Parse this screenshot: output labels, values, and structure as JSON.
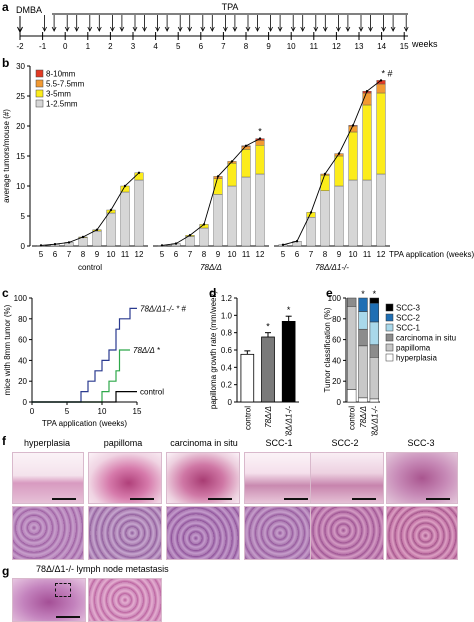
{
  "panel_letters": {
    "a": "a",
    "b": "b",
    "c": "c",
    "d": "d",
    "e": "e",
    "f": "f",
    "g": "g"
  },
  "timeline": {
    "dmba_label": "DMBA",
    "tpa_label": "TPA",
    "ticks": [
      "-2",
      "-1",
      "0",
      "1",
      "2",
      "3",
      "4",
      "5",
      "6",
      "7",
      "8",
      "9",
      "10",
      "11",
      "12",
      "13",
      "14",
      "15"
    ],
    "unit_label": "weeks"
  },
  "chart_data": [
    {
      "id": "b",
      "type": "bar",
      "stacked": true,
      "ylabel": "average tumors/mouse (#)",
      "xlabel": "TPA application (weeks)",
      "ylim": [
        0,
        30
      ],
      "yticks": [
        "0",
        "5",
        "10",
        "15",
        "20",
        "25",
        "30"
      ],
      "legend": [
        "8-10mm",
        "5.5-7.5mm",
        "3-5mm",
        "1-2.5mm"
      ],
      "legend_position": "top-left",
      "colors": {
        "8-10mm": "#e23a24",
        "5.5-7.5mm": "#f29a33",
        "3-5mm": "#fcec1b",
        "1-2.5mm": "#d6d6d6"
      },
      "groups": [
        {
          "name": "control",
          "categories": [
            "5",
            "6",
            "7",
            "8",
            "9",
            "10",
            "11",
            "12"
          ],
          "series": [
            {
              "name": "1-2.5mm",
              "values": [
                0.1,
                0.3,
                0.6,
                1.4,
                2.5,
                5.5,
                9.0,
                11.0
              ]
            },
            {
              "name": "3-5mm",
              "values": [
                0,
                0,
                0,
                0.1,
                0.2,
                0.5,
                1.0,
                1.2
              ]
            },
            {
              "name": "5.5-7.5mm",
              "values": [
                0,
                0,
                0,
                0,
                0,
                0,
                0,
                0
              ]
            },
            {
              "name": "8-10mm",
              "values": [
                0,
                0,
                0,
                0,
                0,
                0,
                0,
                0
              ]
            }
          ],
          "star": ""
        },
        {
          "name": "78Δ/Δ",
          "categories": [
            "5",
            "6",
            "7",
            "8",
            "9",
            "10",
            "11",
            "12"
          ],
          "series": [
            {
              "name": "1-2.5mm",
              "values": [
                0.1,
                0.4,
                1.6,
                3.0,
                8.6,
                10.0,
                11.5,
                12.0
              ]
            },
            {
              "name": "3-5mm",
              "values": [
                0,
                0,
                0.2,
                0.6,
                2.6,
                3.8,
                4.6,
                4.8
              ]
            },
            {
              "name": "5.5-7.5mm",
              "values": [
                0,
                0,
                0,
                0,
                0.4,
                0.3,
                0.5,
                0.8
              ]
            },
            {
              "name": "8-10mm",
              "values": [
                0,
                0,
                0,
                0,
                0,
                0,
                0.1,
                0.3
              ]
            }
          ],
          "star": "*"
        },
        {
          "name": "78Δ/Δ1-/-",
          "categories": [
            "5",
            "6",
            "7",
            "8",
            "9",
            "10",
            "11",
            "12"
          ],
          "series": [
            {
              "name": "1-2.5mm",
              "values": [
                0.2,
                0.8,
                4.8,
                9.2,
                10.0,
                11.0,
                11.0,
                12.0
              ]
            },
            {
              "name": "3-5mm",
              "values": [
                0,
                0,
                0.8,
                2.6,
                5.0,
                8.0,
                12.5,
                13.5
              ]
            },
            {
              "name": "5.5-7.5mm",
              "values": [
                0,
                0,
                0,
                0.2,
                0.4,
                1.0,
                2.0,
                1.5
              ]
            },
            {
              "name": "8-10mm",
              "values": [
                0,
                0,
                0,
                0,
                0,
                0.1,
                0.3,
                0.6
              ]
            }
          ],
          "star": "* #"
        }
      ]
    },
    {
      "id": "c",
      "type": "line",
      "step": true,
      "ylabel": "mice with 8mm tumor (%)",
      "xlabel": "TPA application (weeks)",
      "xlim": [
        0,
        15
      ],
      "ylim": [
        0,
        100
      ],
      "xticks": [
        "0",
        "5",
        "10",
        "15"
      ],
      "yticks": [
        "0",
        "20",
        "40",
        "60",
        "80",
        "100"
      ],
      "series": [
        {
          "name": "78Δ/Δ1-/- * #",
          "color": "#2a3a8f",
          "x": [
            0,
            7,
            7,
            8,
            8,
            9,
            9,
            10,
            10,
            11,
            11,
            12,
            12,
            12.5,
            12.5,
            14,
            14,
            15
          ],
          "y": [
            0,
            0,
            10,
            10,
            20,
            20,
            30,
            30,
            40,
            40,
            50,
            50,
            70,
            70,
            80,
            80,
            90,
            90
          ]
        },
        {
          "name": "78Δ/Δ *",
          "color": "#2ea84a",
          "x": [
            0,
            10,
            10,
            11,
            11,
            12,
            12,
            12.5,
            12.5,
            14
          ],
          "y": [
            0,
            0,
            10,
            10,
            20,
            20,
            30,
            30,
            50,
            50
          ]
        },
        {
          "name": "control",
          "color": "#000000",
          "x": [
            0,
            12,
            12,
            15
          ],
          "y": [
            0,
            0,
            10,
            10
          ]
        }
      ]
    },
    {
      "id": "d",
      "type": "bar",
      "ylabel": "papilloma growth rate (mm/week)",
      "ylim": [
        0,
        1.2
      ],
      "yticks": [
        "0",
        "0.2",
        "0.4",
        "0.6",
        "0.8",
        "1.0",
        "1.2"
      ],
      "categories": [
        "control",
        "78Δ/Δ",
        "78Δ/Δ1-/-"
      ],
      "values": [
        0.55,
        0.75,
        0.93
      ],
      "errors": [
        0.04,
        0.05,
        0.06
      ],
      "colors": [
        "#ffffff",
        "#7a7a7a",
        "#000000"
      ],
      "stars": [
        "",
        "*",
        "*"
      ]
    },
    {
      "id": "e",
      "type": "bar",
      "stacked": true,
      "ylabel": "Tumor classification (%)",
      "ylim": [
        0,
        100
      ],
      "yticks": [
        "0",
        "20",
        "40",
        "60",
        "80",
        "100"
      ],
      "categories": [
        "control",
        "78Δ/Δ",
        "78Δ/Δ1-/-"
      ],
      "legend": [
        "SCC-3",
        "SCC-2",
        "SCC-1",
        "carcinoma in situ",
        "papilloma",
        "hyperplasia"
      ],
      "colors": {
        "SCC-3": "#000000",
        "SCC-2": "#1f6fb4",
        "SCC-1": "#a9d8ea",
        "carcinoma in situ": "#8c8c8c",
        "papilloma": "#c8c8c8",
        "hyperplasia": "#ffffff"
      },
      "series": [
        {
          "name": "hyperplasia",
          "values": [
            12,
            4,
            3
          ]
        },
        {
          "name": "papilloma",
          "values": [
            80,
            50,
            40
          ]
        },
        {
          "name": "carcinoma in situ",
          "values": [
            8,
            16,
            12
          ]
        },
        {
          "name": "SCC-1",
          "values": [
            0,
            17,
            22
          ]
        },
        {
          "name": "SCC-2",
          "values": [
            0,
            13,
            18
          ]
        },
        {
          "name": "SCC-3",
          "values": [
            0,
            0,
            5
          ]
        }
      ],
      "stars": [
        "",
        "*",
        "*"
      ]
    }
  ],
  "histology": {
    "captions": [
      "hyperplasia",
      "papilloma",
      "carcinoma in situ",
      "SCC-1",
      "SCC-2",
      "SCC-3"
    ],
    "metastasis_caption": "78Δ/Δ1-/- lymph node metastasis"
  }
}
